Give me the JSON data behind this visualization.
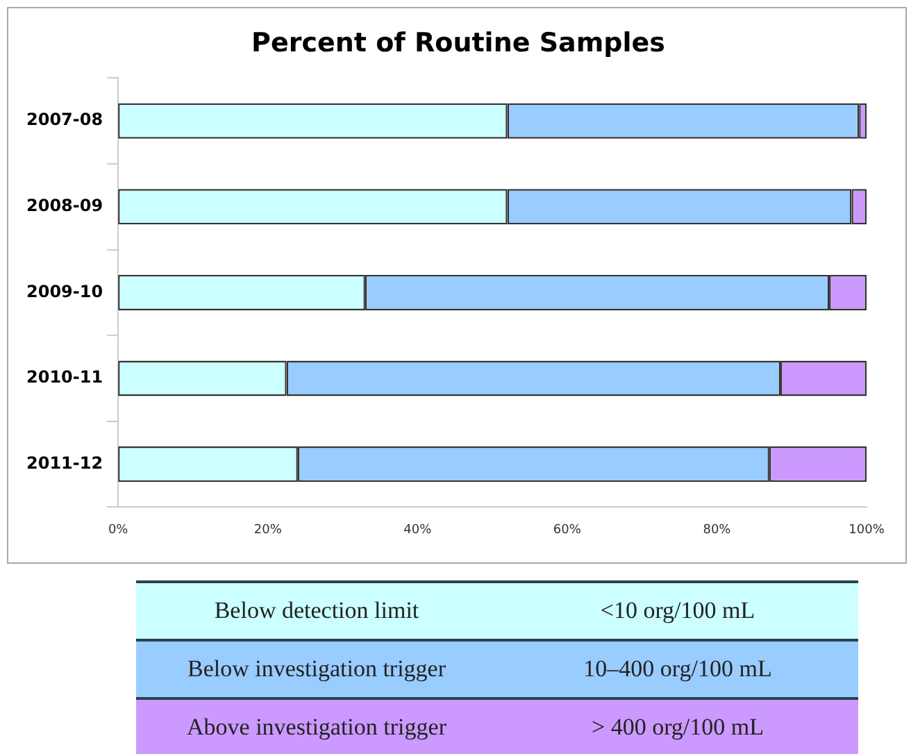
{
  "chart_data": {
    "type": "bar",
    "orientation": "horizontal",
    "stacked": true,
    "title": "Percent of Routine Samples",
    "categories": [
      "2007-08",
      "2008-09",
      "2009-10",
      "2010-11",
      "2011-12"
    ],
    "series": [
      {
        "name": "Below detection limit",
        "color": "#ccffff",
        "values": [
          52,
          52,
          33,
          22.5,
          24
        ]
      },
      {
        "name": "Below investigation trigger",
        "color": "#99ccff",
        "values": [
          47,
          46,
          62,
          66,
          63
        ]
      },
      {
        "name": "Above investigation trigger",
        "color": "#cc99ff",
        "values": [
          1,
          2,
          5,
          11.5,
          13
        ]
      }
    ],
    "xlim": [
      0,
      100
    ],
    "xticks": [
      {
        "value": 0,
        "label": "0%"
      },
      {
        "value": 20,
        "label": "20%"
      },
      {
        "value": 40,
        "label": "40%"
      },
      {
        "value": 60,
        "label": "60%"
      },
      {
        "value": 80,
        "label": "80%"
      },
      {
        "value": 100,
        "label": "100%"
      }
    ],
    "grid": false,
    "legend": "bottom",
    "annotations": [
      "<10 org/100 mL",
      "10–400 org/100 mL",
      "> 400 org/100 mL"
    ]
  }
}
